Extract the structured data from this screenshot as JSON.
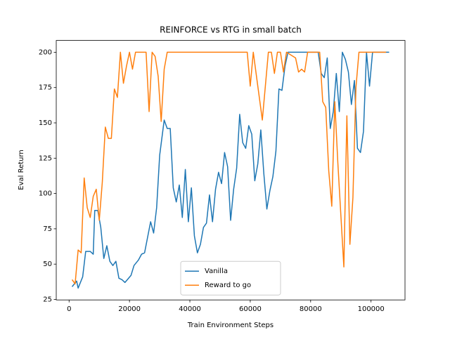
{
  "chart_data": {
    "type": "line",
    "title": "REINFORCE vs RTG in small batch",
    "x_label": "Train Environment Steps",
    "y_label": "Eval Return",
    "xlim": [
      -4250,
      111250
    ],
    "ylim": [
      24.65,
      208.35
    ],
    "xticks": [
      0,
      20000,
      40000,
      60000,
      80000,
      100000
    ],
    "yticks": [
      25,
      50,
      75,
      100,
      125,
      150,
      175,
      200
    ],
    "legend": "lower center",
    "series": [
      {
        "name": "Vanilla",
        "color": "#1f77b4",
        "x": [
          1000,
          2500,
          3000,
          4500,
          5500,
          7000,
          8000,
          8500,
          9500,
          10500,
          11500,
          12500,
          13500,
          14500,
          15500,
          16500,
          17500,
          18500,
          20500,
          21500,
          23000,
          24000,
          25000,
          27000,
          28000,
          29000,
          30000,
          31500,
          32500,
          33500,
          34500,
          35500,
          36500,
          37500,
          38500,
          39500,
          40500,
          41500,
          42500,
          43500,
          44500,
          45500,
          46500,
          47500,
          48500,
          49500,
          50500,
          51500,
          52500,
          53500,
          54500,
          55500,
          56500,
          57500,
          58500,
          59500,
          60500,
          61500,
          62500,
          63500,
          64500,
          65500,
          66500,
          67500,
          68500,
          69500,
          70500,
          71500,
          72500,
          82500,
          83500,
          84500,
          85500,
          86500,
          87500,
          88500,
          89500,
          90500,
          91500,
          92500,
          93500,
          94500,
          95500,
          96500,
          97500,
          98500,
          99500,
          100500,
          106000
        ],
        "values": [
          34,
          38,
          33,
          41,
          59,
          59,
          57,
          88,
          88,
          76,
          54,
          63,
          52,
          49,
          52,
          40,
          39,
          37,
          42,
          49,
          53,
          57,
          58,
          80,
          72,
          90,
          127,
          152,
          146,
          146,
          104,
          94,
          106,
          83,
          117,
          80,
          104,
          70,
          58,
          64,
          76,
          79,
          99,
          80,
          103,
          115,
          107,
          129,
          119,
          81,
          103,
          118,
          156,
          136,
          132,
          148,
          142,
          109,
          121,
          145,
          114,
          89,
          102,
          112,
          130,
          174,
          173,
          190,
          200,
          200,
          185,
          182,
          196,
          146,
          158,
          185,
          158,
          200,
          195,
          186,
          163,
          180,
          132,
          129,
          144,
          200,
          176,
          200,
          200
        ]
      },
      {
        "name": "Reward to go",
        "color": "#ff7f0e",
        "x": [
          1000,
          2000,
          3000,
          4000,
          5000,
          6000,
          7000,
          8000,
          9000,
          10000,
          11000,
          12000,
          13000,
          14000,
          15000,
          16000,
          17000,
          18000,
          19000,
          20000,
          21000,
          22000,
          25500,
          26500,
          27500,
          28500,
          29500,
          30500,
          31500,
          32500,
          59000,
          60000,
          61000,
          62000,
          63000,
          64000,
          65000,
          66000,
          67000,
          68000,
          69000,
          70000,
          71000,
          72000,
          75000,
          76000,
          77000,
          78000,
          79000,
          83000,
          84000,
          85000,
          86000,
          87000,
          88000,
          89000,
          90000,
          91000,
          92000,
          93000,
          94000,
          95000,
          96000,
          105000
        ],
        "values": [
          39,
          36,
          60,
          58,
          111,
          90,
          83,
          98,
          103,
          81,
          108,
          147,
          139,
          139,
          174,
          168,
          200,
          178,
          190,
          200,
          188,
          200,
          200,
          158,
          200,
          197,
          183,
          151,
          188,
          200,
          200,
          176,
          200,
          184,
          168,
          152,
          176,
          200,
          200,
          185,
          200,
          200,
          186,
          200,
          196,
          186,
          188,
          186,
          200,
          200,
          165,
          161,
          116,
          91,
          165,
          122,
          85,
          48,
          155,
          64,
          97,
          175,
          200,
          200
        ]
      }
    ]
  }
}
